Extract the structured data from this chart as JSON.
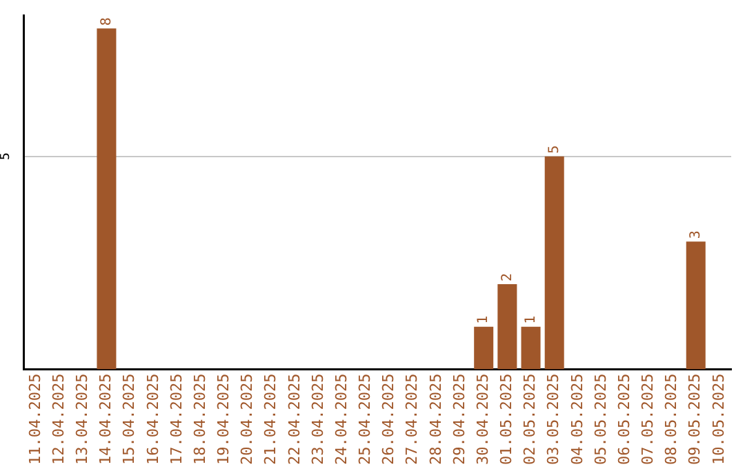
{
  "chart_data": {
    "type": "bar",
    "categories": [
      "11.04.2025",
      "12.04.2025",
      "13.04.2025",
      "14.04.2025",
      "15.04.2025",
      "16.04.2025",
      "17.04.2025",
      "18.04.2025",
      "19.04.2025",
      "20.04.2025",
      "21.04.2025",
      "22.04.2025",
      "23.04.2025",
      "24.04.2025",
      "25.04.2025",
      "26.04.2025",
      "27.04.2025",
      "28.04.2025",
      "29.04.2025",
      "30.04.2025",
      "01.05.2025",
      "02.05.2025",
      "03.05.2025",
      "04.05.2025",
      "05.05.2025",
      "06.05.2025",
      "07.05.2025",
      "08.05.2025",
      "09.05.2025",
      "10.05.2025"
    ],
    "values": [
      0,
      0,
      0,
      8,
      0,
      0,
      0,
      0,
      0,
      0,
      0,
      0,
      0,
      0,
      0,
      0,
      0,
      0,
      0,
      1,
      2,
      1,
      5,
      0,
      0,
      0,
      0,
      0,
      3,
      0
    ],
    "value_labels": [
      null,
      null,
      null,
      "8",
      null,
      null,
      null,
      null,
      null,
      null,
      null,
      null,
      null,
      null,
      null,
      null,
      null,
      null,
      null,
      "1",
      "2",
      "1",
      "5",
      null,
      null,
      null,
      null,
      null,
      "3",
      null
    ],
    "color": "#a0572a",
    "ylim": [
      0,
      8.3
    ],
    "yticks": [
      5
    ],
    "grid": "y",
    "legend": false
  }
}
